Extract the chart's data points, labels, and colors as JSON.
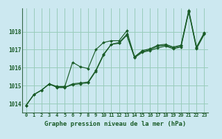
{
  "xlabel": "Graphe pression niveau de la mer (hPa)",
  "background_color": "#cce8f0",
  "grid_color": "#99ccbb",
  "line_color": "#1a5c28",
  "marker_color": "#1a5c28",
  "ylim": [
    1013.5,
    1019.3
  ],
  "yticks": [
    1014,
    1015,
    1016,
    1017,
    1018
  ],
  "xlim": [
    -0.5,
    23.5
  ],
  "xticks": [
    0,
    1,
    2,
    3,
    4,
    5,
    6,
    7,
    8,
    9,
    10,
    11,
    12,
    13,
    14,
    15,
    16,
    17,
    18,
    19,
    20,
    21,
    22,
    23
  ],
  "series": [
    [
      1013.9,
      1014.5,
      1014.75,
      1015.1,
      1014.9,
      1014.9,
      1015.1,
      1015.15,
      1015.2,
      1015.85,
      1016.75,
      1017.3,
      1017.4,
      1017.85,
      1016.6,
      1016.9,
      1017.0,
      1017.2,
      1017.25,
      1017.1,
      1017.2,
      1019.15,
      1017.1,
      1017.9
    ],
    [
      1013.9,
      1014.5,
      1014.75,
      1015.1,
      1014.9,
      1014.9,
      1015.05,
      1015.1,
      1015.15,
      1015.8,
      1016.7,
      1017.3,
      1017.35,
      1017.8,
      1016.55,
      1016.85,
      1016.95,
      1017.1,
      1017.2,
      1017.05,
      1017.15,
      1019.1,
      1017.05,
      1017.85
    ],
    [
      1013.9,
      1014.5,
      1014.75,
      1015.1,
      1014.95,
      1014.95,
      1016.3,
      1016.05,
      1015.95,
      1017.0,
      1017.4,
      1017.5,
      1017.5,
      1018.05,
      1016.6,
      1016.95,
      1017.05,
      1017.25,
      1017.3,
      1017.15,
      1017.25,
      1019.2,
      1017.15,
      1017.95
    ]
  ]
}
